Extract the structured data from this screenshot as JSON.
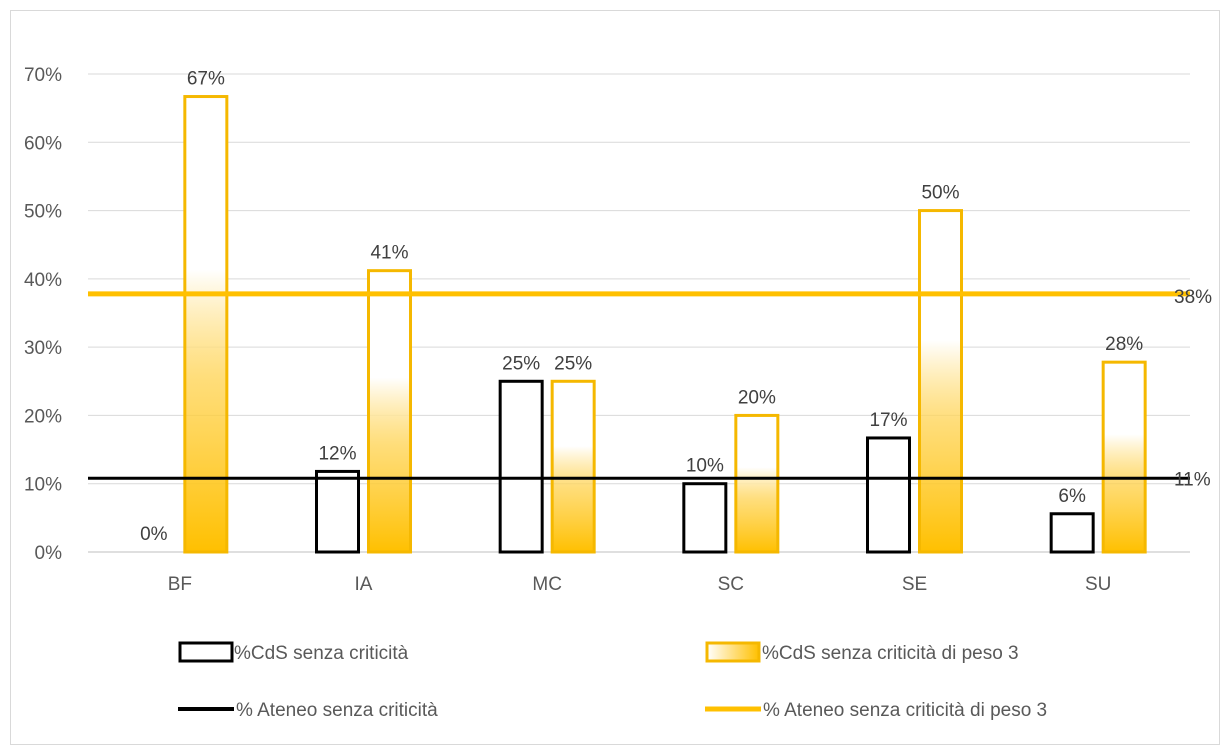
{
  "chart_data": {
    "type": "bar",
    "categories": [
      "BF",
      "IA",
      "MC",
      "SC",
      "SE",
      "SU"
    ],
    "series": [
      {
        "name": "%CdS senza criticità",
        "kind": "bar",
        "values": [
          0,
          11.8,
          25,
          10,
          16.7,
          5.6
        ],
        "labels": [
          "0%",
          "12%",
          "25%",
          "10%",
          "17%",
          "6%"
        ]
      },
      {
        "name": "%CdS senza criticità di peso 3",
        "kind": "bar",
        "values": [
          66.7,
          41.2,
          25,
          20,
          50,
          27.8
        ],
        "labels": [
          "67%",
          "41%",
          "25%",
          "20%",
          "50%",
          "28%"
        ]
      },
      {
        "name": "% Ateneo senza criticità",
        "kind": "line",
        "value": 10.8,
        "label": "11%"
      },
      {
        "name": "% Ateneo senza criticità di peso 3",
        "kind": "line",
        "value": 37.8,
        "label": "38%"
      }
    ],
    "y_ticks": [
      "0%",
      "10%",
      "20%",
      "30%",
      "40%",
      "50%",
      "60%",
      "70%"
    ],
    "ylim": [
      0,
      70
    ],
    "grid": true,
    "legend_position": "bottom",
    "colors": {
      "bar1_outline": "#000000",
      "bar2_outline": "#f5b800",
      "bar2_fill": "#ffc000",
      "line1": "#000000",
      "line2": "#ffc000",
      "grid": "#d9d9d9"
    }
  }
}
